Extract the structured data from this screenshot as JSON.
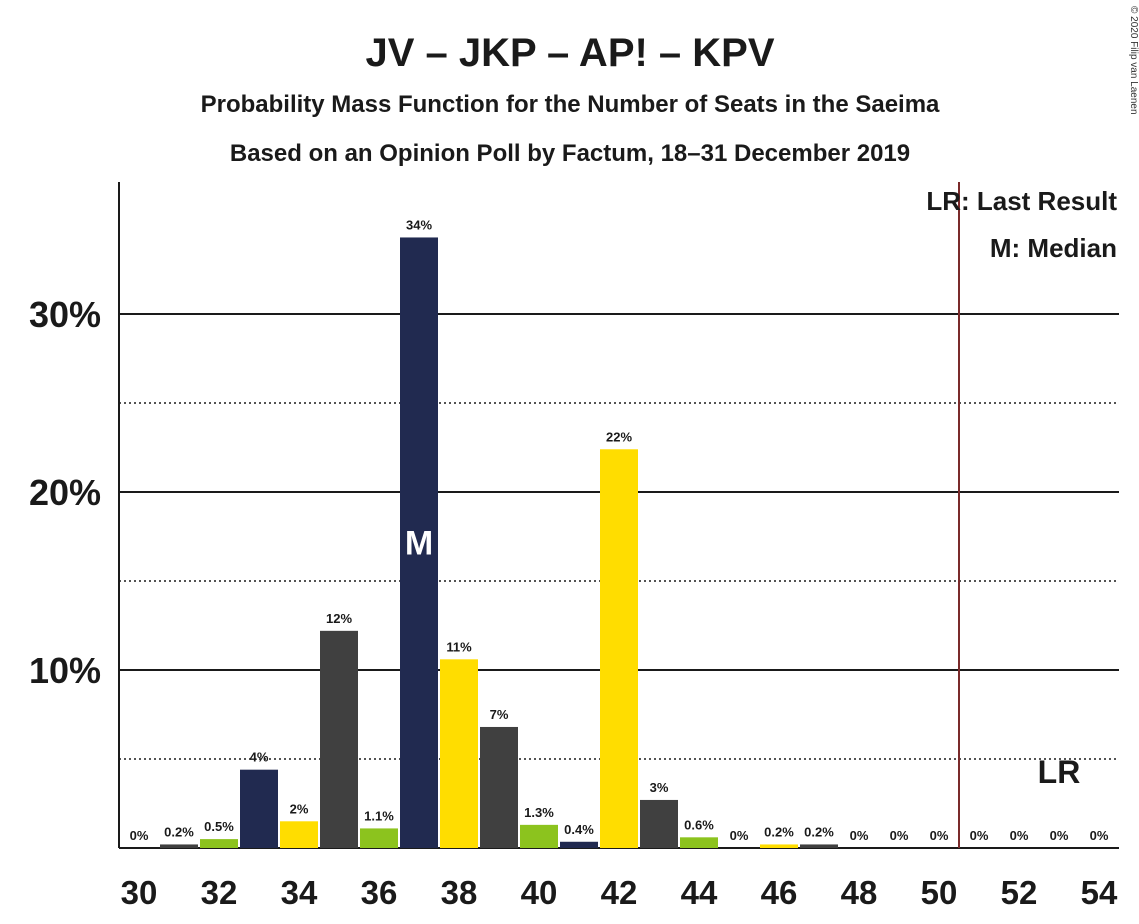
{
  "title": "JV – JKP – AP! – KPV",
  "subtitle": "Probability Mass Function for the Number of Seats in the Saeima",
  "subtitle2": "Based on an Opinion Poll by Factum, 18–31 December 2019",
  "copyright": "© 2020 Filip van Laenen",
  "legend": {
    "last_result": "LR: Last Result",
    "median": "M: Median"
  },
  "colors": {
    "navy": "#212a50",
    "yellow": "#ffdd00",
    "green": "#8cc31e",
    "gray": "#404040",
    "lr_line": "#7a2a2a"
  },
  "chart_data": {
    "type": "bar",
    "x": [
      30,
      31,
      32,
      33,
      34,
      35,
      36,
      37,
      38,
      39,
      40,
      41,
      42,
      43,
      44,
      45,
      46,
      47,
      48,
      49,
      50,
      51,
      52,
      53,
      54
    ],
    "values": [
      0,
      0.2,
      0.5,
      4.4,
      1.5,
      12.2,
      1.1,
      34.3,
      10.6,
      6.8,
      1.3,
      0.35,
      22.4,
      2.7,
      0.6,
      0,
      0.2,
      0.2,
      0,
      0,
      0,
      0,
      0,
      0,
      0
    ],
    "labels": [
      "0%",
      "0.2%",
      "0.5%",
      "4%",
      "2%",
      "12%",
      "1.1%",
      "34%",
      "11%",
      "7%",
      "1.3%",
      "0.4%",
      "22%",
      "3%",
      "0.6%",
      "0%",
      "0.2%",
      "0.2%",
      "0%",
      "0%",
      "0%",
      "0%",
      "0%",
      "0%",
      "0%"
    ],
    "bar_colors": [
      "navy",
      "gray",
      "green",
      "navy",
      "yellow",
      "gray",
      "green",
      "navy",
      "yellow",
      "gray",
      "green",
      "navy",
      "yellow",
      "gray",
      "green",
      "navy",
      "yellow",
      "gray",
      "green",
      "navy",
      "yellow",
      "gray",
      "green",
      "navy",
      "yellow"
    ],
    "x_tick_labels": [
      "30",
      "32",
      "34",
      "36",
      "38",
      "40",
      "42",
      "44",
      "46",
      "48",
      "50",
      "52",
      "54"
    ],
    "y_ticks": [
      10,
      20,
      30
    ],
    "y_tick_labels": [
      "10%",
      "20%",
      "30%"
    ],
    "y_minor_ticks": [
      5,
      15,
      25
    ],
    "ylim": [
      0,
      37.5
    ],
    "median_seat": 37,
    "median_mark": "M",
    "last_result_seat": 51,
    "last_result_mark": "LR"
  }
}
